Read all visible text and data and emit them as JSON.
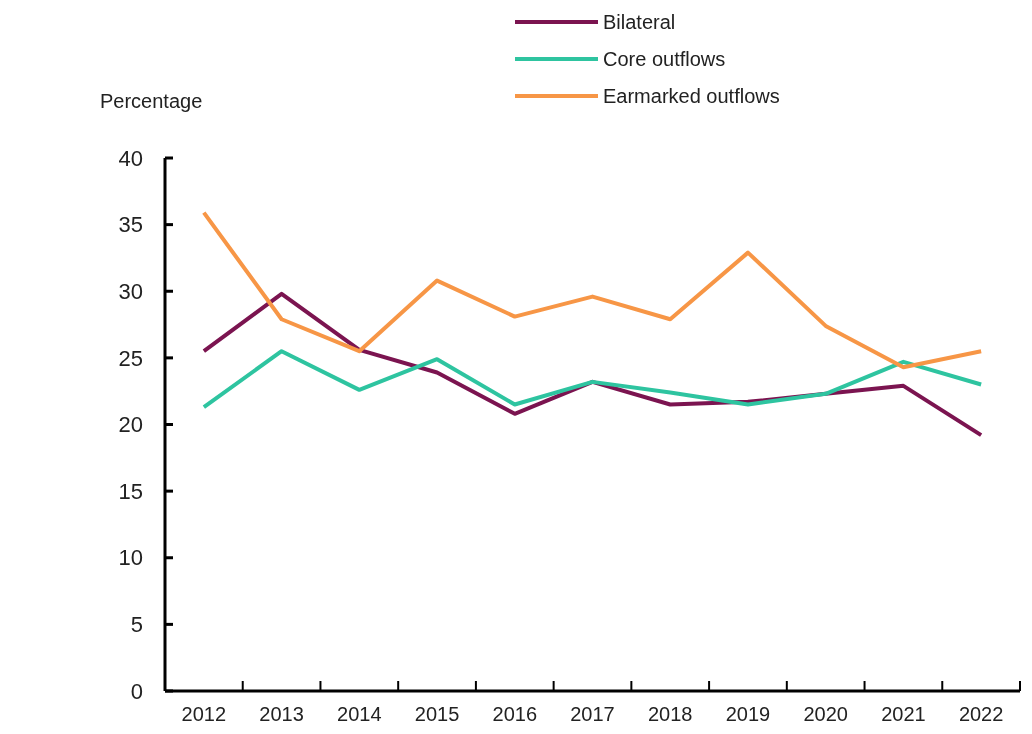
{
  "chart_data": {
    "type": "line",
    "ylabel": "Percentage",
    "categories": [
      "2012",
      "2013",
      "2014",
      "2015",
      "2016",
      "2017",
      "2018",
      "2019",
      "2020",
      "2021",
      "2022"
    ],
    "series": [
      {
        "name": "Bilateral",
        "color": "#7b1450",
        "values": [
          25.5,
          29.8,
          25.6,
          23.9,
          20.8,
          23.2,
          21.5,
          21.7,
          22.3,
          22.9,
          19.2
        ]
      },
      {
        "name": "Core outflows",
        "color": "#2ec4a0",
        "values": [
          21.3,
          25.5,
          22.6,
          24.9,
          21.5,
          23.2,
          22.4,
          21.5,
          22.3,
          24.7,
          23.0
        ]
      },
      {
        "name": "Earmarked outflows",
        "color": "#f79646",
        "values": [
          35.9,
          27.9,
          25.5,
          30.8,
          28.1,
          29.6,
          27.9,
          32.9,
          27.4,
          24.3,
          25.5
        ]
      }
    ],
    "ylim": [
      0,
      40
    ],
    "yticks": [
      0,
      5,
      10,
      15,
      20,
      25,
      30,
      35,
      40
    ],
    "grid": false,
    "legend": "top",
    "line_style": "solid",
    "marker": "none"
  }
}
